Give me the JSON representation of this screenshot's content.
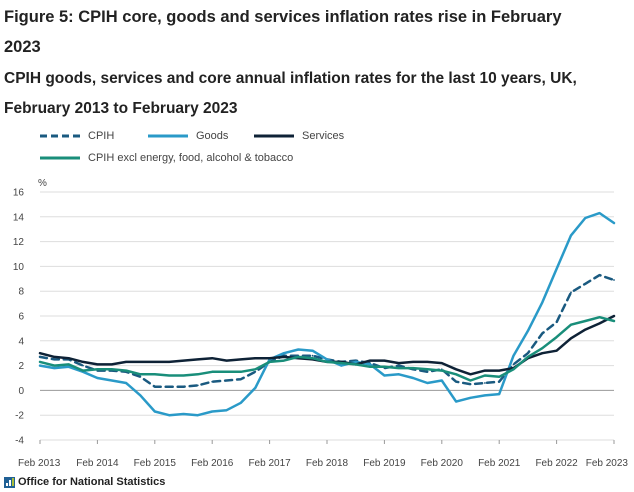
{
  "header": {
    "title": "Figure 5: CPIH core, goods and services inflation rates rise in February 2023",
    "subtitle": "CPIH goods, services and core annual inflation rates for the last 10 years, UK, February 2013 to February 2023"
  },
  "footer": {
    "credit": "Office for National Statistics"
  },
  "colors": {
    "cpih": "#1a5a80",
    "goods": "#2a9ac8",
    "services": "#0e2236",
    "core": "#198e7a",
    "grid": "#dddddd",
    "zero_line": "#999999"
  },
  "chart_data": {
    "type": "line",
    "title": "Figure 5: CPIH core, goods and services inflation rates rise in February 2023",
    "subtitle": "CPIH goods, services and core annual inflation rates for the last 10 years, UK, February 2013 to February 2023",
    "ylabel": "%",
    "xlabel": "",
    "ylim": [
      -4,
      16
    ],
    "yticks": [
      -4,
      -2,
      0,
      2,
      4,
      6,
      8,
      10,
      12,
      14,
      16
    ],
    "x_start": "Feb 2013",
    "x_end": "Feb 2023",
    "xticks": [
      "Feb 2013",
      "Feb 2014",
      "Feb 2015",
      "Feb 2016",
      "Feb 2017",
      "Feb 2018",
      "Feb 2019",
      "Feb 2020",
      "Feb 2021",
      "Feb 2022",
      "Feb 2023"
    ],
    "grid": "horizontal",
    "legend_position": "top",
    "x": [
      "Feb 2013",
      "May 2013",
      "Aug 2013",
      "Nov 2013",
      "Feb 2014",
      "May 2014",
      "Aug 2014",
      "Nov 2014",
      "Feb 2015",
      "May 2015",
      "Aug 2015",
      "Nov 2015",
      "Feb 2016",
      "May 2016",
      "Aug 2016",
      "Nov 2016",
      "Feb 2017",
      "May 2017",
      "Aug 2017",
      "Nov 2017",
      "Feb 2018",
      "May 2018",
      "Aug 2018",
      "Nov 2018",
      "Feb 2019",
      "May 2019",
      "Aug 2019",
      "Nov 2019",
      "Feb 2020",
      "May 2020",
      "Aug 2020",
      "Nov 2020",
      "Feb 2021",
      "May 2021",
      "Aug 2021",
      "Nov 2021",
      "Feb 2022",
      "May 2022",
      "Aug 2022",
      "Nov 2022",
      "Feb 2023"
    ],
    "series": [
      {
        "name": "CPIH",
        "key": "cpih",
        "style": "dashed",
        "values": [
          2.7,
          2.5,
          2.5,
          2.0,
          1.6,
          1.6,
          1.5,
          1.1,
          0.3,
          0.3,
          0.3,
          0.4,
          0.7,
          0.8,
          0.9,
          1.5,
          2.3,
          2.8,
          2.8,
          2.8,
          2.5,
          2.3,
          2.4,
          2.2,
          1.8,
          2.0,
          1.7,
          1.5,
          1.7,
          0.7,
          0.5,
          0.6,
          0.7,
          2.1,
          3.0,
          4.6,
          5.5,
          7.9,
          8.6,
          9.3,
          8.9
        ]
      },
      {
        "name": "Goods",
        "key": "goods",
        "style": "solid",
        "values": [
          2.0,
          1.8,
          1.9,
          1.5,
          1.0,
          0.8,
          0.6,
          -0.4,
          -1.7,
          -2.0,
          -1.9,
          -2.0,
          -1.7,
          -1.6,
          -1.0,
          0.2,
          2.5,
          3.0,
          3.3,
          3.2,
          2.5,
          2.0,
          2.3,
          2.1,
          1.2,
          1.3,
          1.0,
          0.6,
          0.8,
          -0.9,
          -0.6,
          -0.4,
          -0.3,
          2.8,
          4.8,
          7.1,
          9.8,
          12.5,
          13.9,
          14.3,
          13.5
        ]
      },
      {
        "name": "Services",
        "key": "services",
        "style": "solid",
        "values": [
          3.0,
          2.7,
          2.6,
          2.3,
          2.1,
          2.1,
          2.3,
          2.3,
          2.3,
          2.3,
          2.4,
          2.5,
          2.6,
          2.4,
          2.5,
          2.6,
          2.6,
          2.7,
          2.6,
          2.5,
          2.3,
          2.3,
          2.1,
          2.4,
          2.4,
          2.2,
          2.3,
          2.3,
          2.2,
          1.7,
          1.3,
          1.6,
          1.6,
          1.8,
          2.6,
          3.0,
          3.2,
          4.2,
          4.9,
          5.4,
          6.0
        ]
      },
      {
        "name": "CPIH excl energy, food, alcohol & tobacco",
        "key": "core",
        "style": "solid",
        "values": [
          2.3,
          2.0,
          2.1,
          1.6,
          1.7,
          1.7,
          1.6,
          1.3,
          1.3,
          1.2,
          1.2,
          1.3,
          1.5,
          1.5,
          1.5,
          1.7,
          2.3,
          2.4,
          2.7,
          2.6,
          2.3,
          2.2,
          2.1,
          1.9,
          1.9,
          1.8,
          1.8,
          1.7,
          1.6,
          1.3,
          0.8,
          1.2,
          1.1,
          1.7,
          2.7,
          3.4,
          4.3,
          5.3,
          5.6,
          5.9,
          5.6
        ]
      }
    ]
  }
}
